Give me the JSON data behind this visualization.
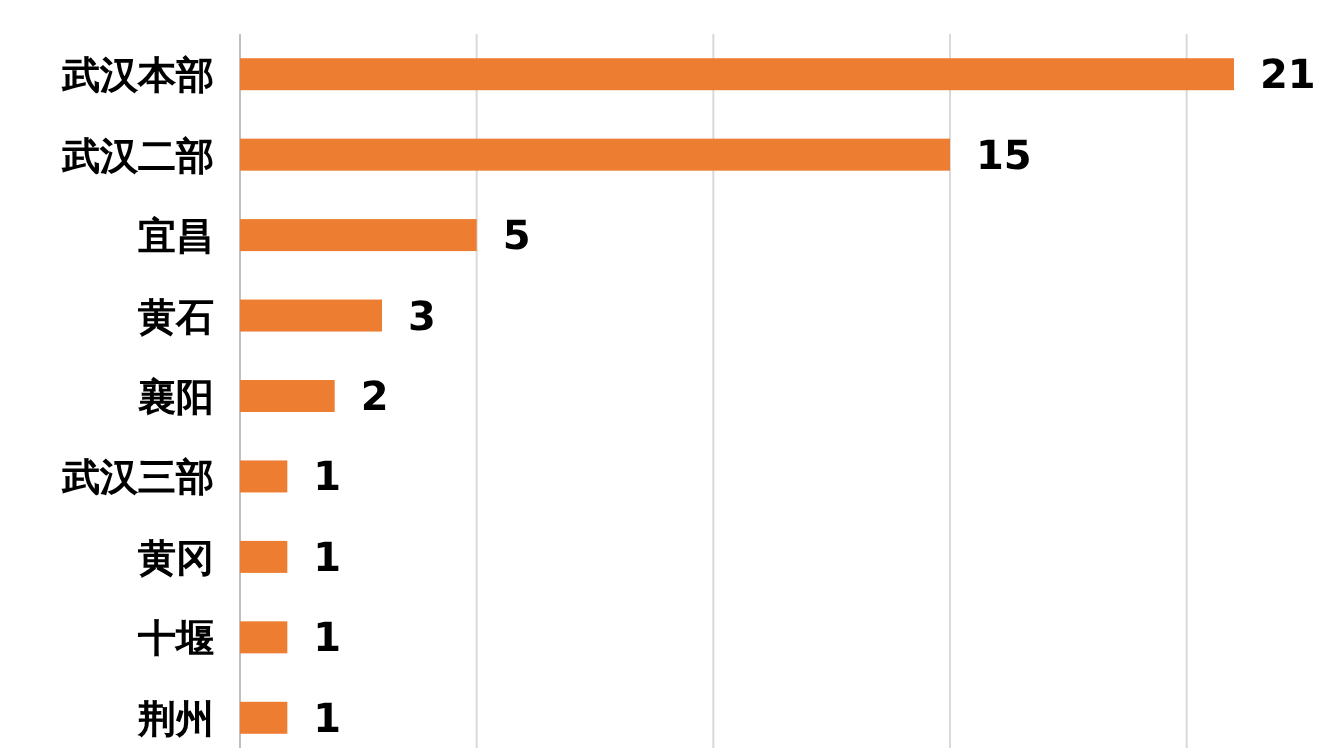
{
  "chart_data": {
    "type": "bar",
    "orientation": "horizontal",
    "categories": [
      "武汉本部",
      "武汉二部",
      "宜昌",
      "黄石",
      "襄阳",
      "武汉三部",
      "黄冈",
      "十堰",
      "荆州"
    ],
    "values": [
      21,
      15,
      5,
      3,
      2,
      1,
      1,
      1,
      1
    ],
    "color": "#ed7d31",
    "xticks": [
      {
        "value": 0,
        "label": null
      },
      {
        "value": 5,
        "label": null
      },
      {
        "value": 10,
        "label": null
      },
      {
        "value": 15,
        "label": null
      },
      {
        "value": 20,
        "label": null
      }
    ],
    "grid": "x",
    "data_labels": true,
    "tick_labels": "y"
  }
}
